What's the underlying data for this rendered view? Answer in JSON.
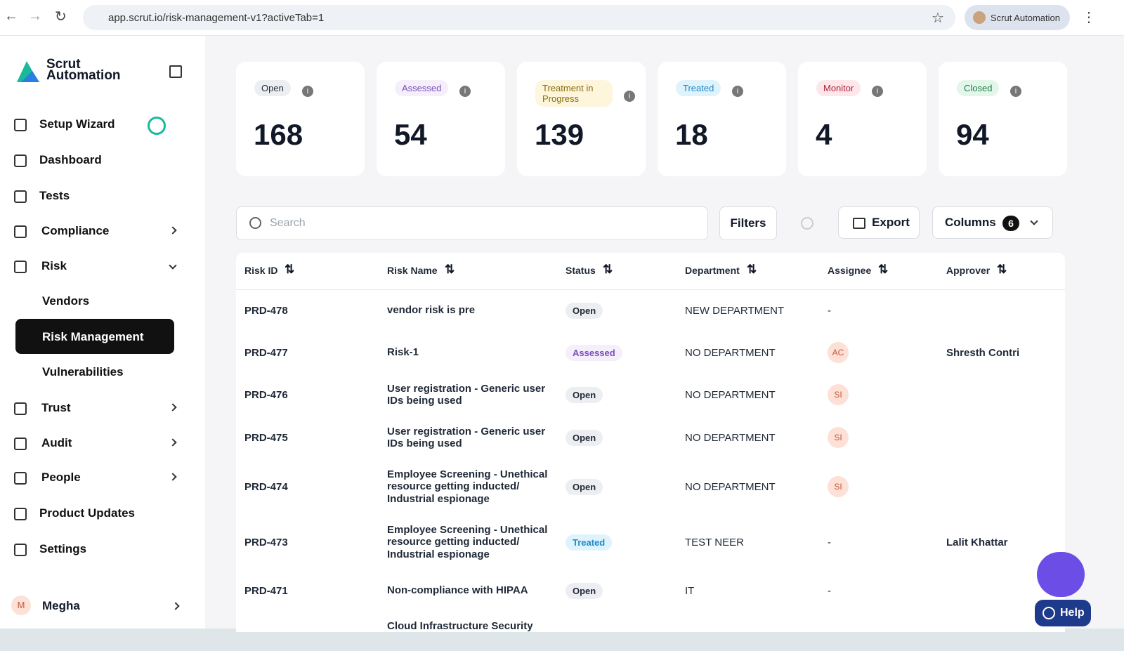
{
  "browser": {
    "url": "app.scrut.io/risk-management-v1?activeTab=1",
    "profile": "Scrut Automation"
  },
  "sidebar": {
    "brand": [
      "Scrut",
      "Automation"
    ],
    "nav": [
      "Setup Wizard",
      "Dashboard",
      "Tests",
      "Compliance",
      "Risk",
      "Vendors",
      "Risk Management",
      "Vulnerabilities",
      "Trust",
      "Audit",
      "People",
      "Product Updates",
      "Settings"
    ],
    "user": {
      "initial": "M",
      "name": "Megha"
    }
  },
  "cards": [
    {
      "label": "Open",
      "count": 168,
      "bg": "#eceef1",
      "fg": "#1f2937"
    },
    {
      "label": "Assessed",
      "count": 54,
      "bg": "#f4effb",
      "fg": "#7c4dbb"
    },
    {
      "label": "Treatment in Progress",
      "count": 139,
      "bg": "#fdf5dc",
      "fg": "#8a6d0b"
    },
    {
      "label": "Treated",
      "count": 18,
      "bg": "#dff3fd",
      "fg": "#1e88c8"
    },
    {
      "label": "Monitor",
      "count": 4,
      "bg": "#fde7ea",
      "fg": "#b0263b"
    },
    {
      "label": "Closed",
      "count": 94,
      "bg": "#e3f6ea",
      "fg": "#21804a"
    }
  ],
  "toolbar": {
    "search": "Search",
    "filters": "Filters",
    "export": "Export",
    "columns": "Columns",
    "columns_count": 6
  },
  "table": {
    "headers": [
      "Risk ID",
      "Risk Name",
      "Status",
      "Department",
      "Assignee",
      "Approver"
    ],
    "rows": [
      [
        "PRD-478",
        "vendor risk is pre",
        "Open",
        "NEW DEPARTMENT",
        "-",
        null
      ],
      [
        "PRD-477",
        "Risk-1",
        "Assessed",
        "NO DEPARTMENT",
        "AC",
        "Shresth Contri"
      ],
      [
        "PRD-476",
        "User registration - Generic user IDs being used",
        "Open",
        "NO DEPARTMENT",
        "SI",
        null
      ],
      [
        "PRD-475",
        "User registration - Generic user IDs being used",
        "Open",
        "NO DEPARTMENT",
        "SI",
        null
      ],
      [
        "PRD-474",
        "Employee Screening - Unethical resource getting inducted/ Industrial espionage",
        "Open",
        "NO DEPARTMENT",
        "SI",
        null
      ],
      [
        "PRD-473",
        "Employee Screening - Unethical resource getting inducted/ Industrial espionage",
        "Treated",
        "TEST NEER",
        "-",
        "Lalit Khattar"
      ],
      [
        "PRD-471",
        "Non-compliance with HIPAA",
        "Open",
        "IT",
        "-",
        null
      ],
      [
        null,
        "Cloud Infrastructure Security",
        null,
        null,
        null,
        null
      ]
    ]
  },
  "help": "Help"
}
